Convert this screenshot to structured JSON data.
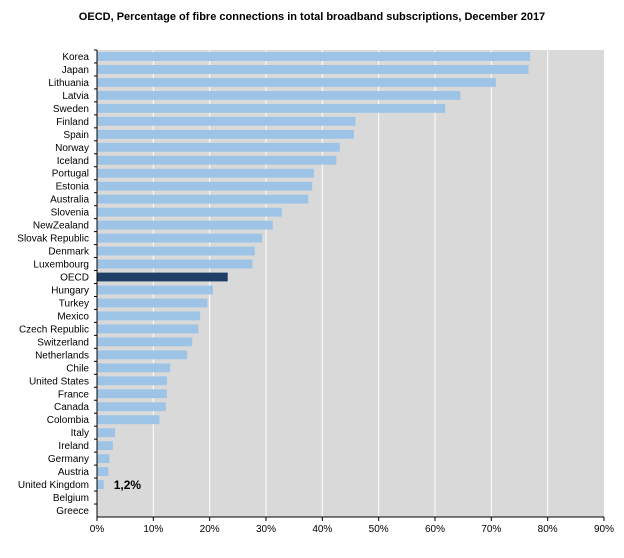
{
  "chart_data": {
    "type": "bar",
    "orientation": "horizontal",
    "title": "OECD,  Percentage of fibre connections in total broadband subscriptions, December 2017",
    "categories": [
      "Korea",
      "Japan",
      "Lithuania",
      "Latvia",
      "Sweden",
      "Finland",
      "Spain",
      "Norway",
      "Iceland",
      "Portugal",
      "Estonia",
      "Australia",
      "Slovenia",
      "NewZealand",
      "Slovak Republic",
      "Denmark",
      "Luxembourg",
      "OECD",
      "Hungary",
      "Turkey",
      "Mexico",
      "Czech Republic",
      "Switzerland",
      "Netherlands",
      "Chile",
      "United States",
      "France",
      "Canada",
      "Colombia",
      "Italy",
      "Ireland",
      "Germany",
      "Austria",
      "United Kingdom",
      "Belgium",
      "Greece"
    ],
    "values": [
      76.9,
      76.6,
      70.8,
      64.5,
      61.8,
      45.9,
      45.6,
      43.1,
      42.5,
      38.5,
      38.2,
      37.5,
      32.8,
      31.2,
      29.3,
      28.0,
      27.6,
      23.2,
      20.6,
      19.6,
      18.3,
      18.0,
      16.9,
      16.0,
      13.0,
      12.4,
      12.4,
      12.2,
      11.1,
      3.2,
      2.8,
      2.2,
      2.0,
      1.2,
      0.0,
      0.0
    ],
    "highlight": "OECD",
    "colors": {
      "bar": "#9dc3e6",
      "highlight": "#1f3f66",
      "plot_bg": "#d9d9d9",
      "grid": "#ffffff"
    },
    "xlim": [
      0,
      90
    ],
    "x_ticks": [
      "0%",
      "10%",
      "20%",
      "30%",
      "40%",
      "50%",
      "60%",
      "70%",
      "80%",
      "90%"
    ],
    "annotation": {
      "category": "United Kingdom",
      "text": "1,2%"
    },
    "grid": true,
    "legend": "none"
  }
}
